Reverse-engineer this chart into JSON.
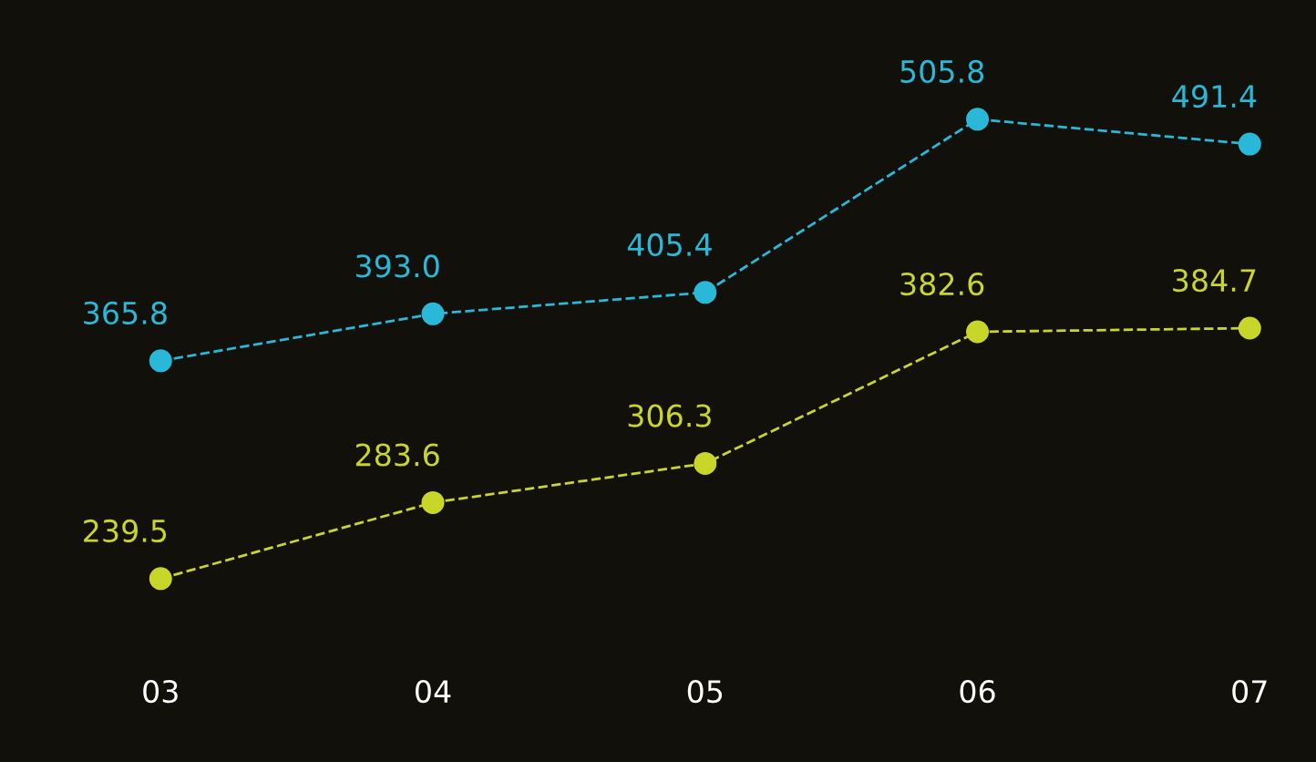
{
  "chart_data": {
    "type": "line",
    "categories": [
      "03",
      "04",
      "05",
      "06",
      "07"
    ],
    "series": [
      {
        "color": "#29b8d8",
        "values": [
          365.8,
          393.0,
          405.4,
          505.8,
          491.4
        ],
        "value_labels": [
          "365.8",
          "393.0",
          "405.4",
          "505.8",
          "491.4"
        ]
      },
      {
        "color": "#c8d62a",
        "values": [
          239.5,
          283.6,
          306.3,
          382.6,
          384.7
        ],
        "value_labels": [
          "239.5",
          "283.6",
          "306.3",
          "382.6",
          "384.7"
        ]
      }
    ],
    "marker": "circle",
    "line_style": "dashed",
    "grid": false,
    "legend": false,
    "tick_labels": "x"
  }
}
